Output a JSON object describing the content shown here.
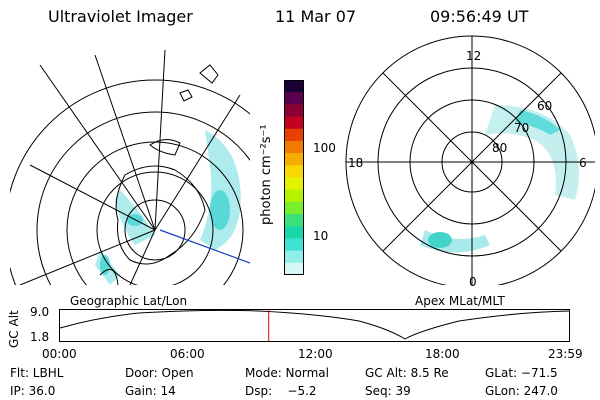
{
  "header": {
    "title": "Ultraviolet Imager",
    "date": "11 Mar 07",
    "time": "09:56:49 UT"
  },
  "left_panel": {
    "label": "Geographic Lat/Lon"
  },
  "right_panel": {
    "label": "Apex MLat/MLT",
    "mlt_labels": [
      "12",
      "18",
      "6",
      "0"
    ],
    "lat_labels": [
      "60",
      "70",
      "80"
    ]
  },
  "colorbar": {
    "label": "photon cm⁻²s⁻¹",
    "ticks": [
      "100",
      "10"
    ],
    "colors": [
      "#1a0033",
      "#5a004e",
      "#8a0032",
      "#c40020",
      "#e84000",
      "#f27a00",
      "#f7ad00",
      "#f7d800",
      "#e5f200",
      "#b5f200",
      "#78ee2c",
      "#3ae07a",
      "#1ad6aa",
      "#3fe3d4",
      "#8ff0ea",
      "#d8f8f8"
    ]
  },
  "timeline": {
    "ylabel": "GC Alt",
    "y_ticks": [
      "9.0",
      "1.8"
    ],
    "x_ticks": [
      "00:00",
      "06:00",
      "12:00",
      "18:00",
      "23:59"
    ],
    "current_time_fraction": 0.41
  },
  "info": {
    "row1": {
      "flt": "Flt: LBHL",
      "door": "Door: Open",
      "mode": "Mode: Normal",
      "gc_alt": "GC Alt: 8.5 Re",
      "glat": "GLat: −71.5"
    },
    "row2": {
      "ip": "IP: 36.0",
      "gain": "Gain: 14",
      "dsp": "Dsp:    −5.2",
      "seq": "Seq: 39",
      "glon": "GLon: 247.0"
    }
  }
}
